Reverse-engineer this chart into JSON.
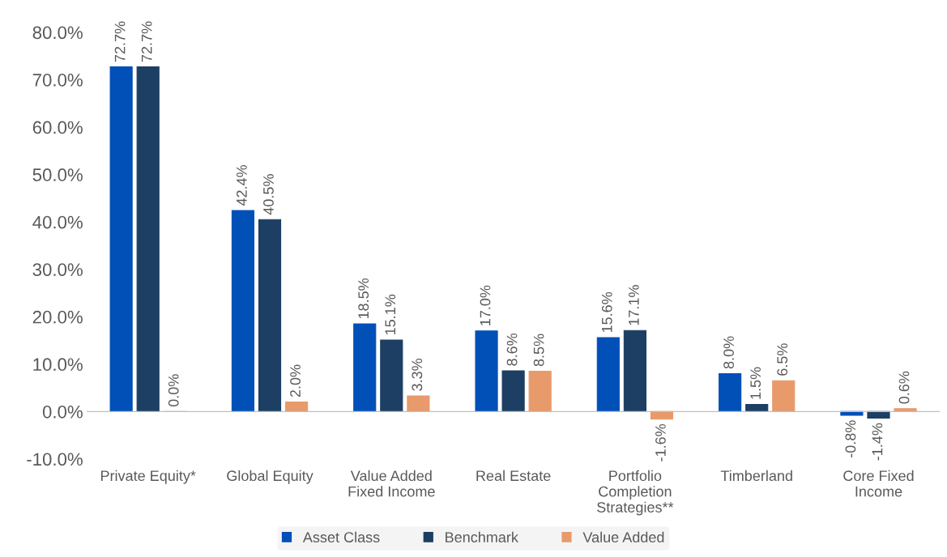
{
  "chart_data": {
    "type": "bar",
    "categories": [
      "Private Equity*",
      "Global Equity",
      "Value Added\nFixed Income",
      "Real Estate",
      "Portfolio\nCompletion\nStrategies**",
      "Timberland",
      "Core Fixed\nIncome"
    ],
    "series": [
      {
        "name": "Asset Class",
        "color": "#0050b8",
        "values": [
          72.7,
          42.4,
          18.5,
          17.0,
          15.6,
          8.0,
          -0.8
        ],
        "value_labels": [
          "72.7%",
          "42.4%",
          "18.5%",
          "17.0%",
          "15.6%",
          "8.0%",
          "-0.8%"
        ]
      },
      {
        "name": "Benchmark",
        "color": "#1c3f63",
        "values": [
          72.7,
          40.5,
          15.1,
          8.6,
          17.1,
          1.5,
          -1.4
        ],
        "value_labels": [
          "72.7%",
          "40.5%",
          "15.1%",
          "8.6%",
          "17.1%",
          "1.5%",
          "-1.4%"
        ]
      },
      {
        "name": "Value Added",
        "color": "#e89a6a",
        "values": [
          0.0,
          2.0,
          3.3,
          8.5,
          -1.6,
          6.5,
          0.6
        ],
        "value_labels": [
          "0.0%",
          "2.0%",
          "3.3%",
          "8.5%",
          "-1.6%",
          "6.5%",
          "0.6%"
        ]
      }
    ],
    "ylim": [
      -10,
      80
    ],
    "yticks": [
      {
        "value": -10,
        "label": "-10.0%"
      },
      {
        "value": 0,
        "label": "0.0%"
      },
      {
        "value": 10,
        "label": "10.0%"
      },
      {
        "value": 20,
        "label": "20.0%"
      },
      {
        "value": 30,
        "label": "30.0%"
      },
      {
        "value": 40,
        "label": "40.0%"
      },
      {
        "value": 50,
        "label": "50.0%"
      },
      {
        "value": 60,
        "label": "60.0%"
      },
      {
        "value": 70,
        "label": "70.0%"
      },
      {
        "value": 80,
        "label": "80.0%"
      }
    ],
    "legend": "bottom"
  }
}
